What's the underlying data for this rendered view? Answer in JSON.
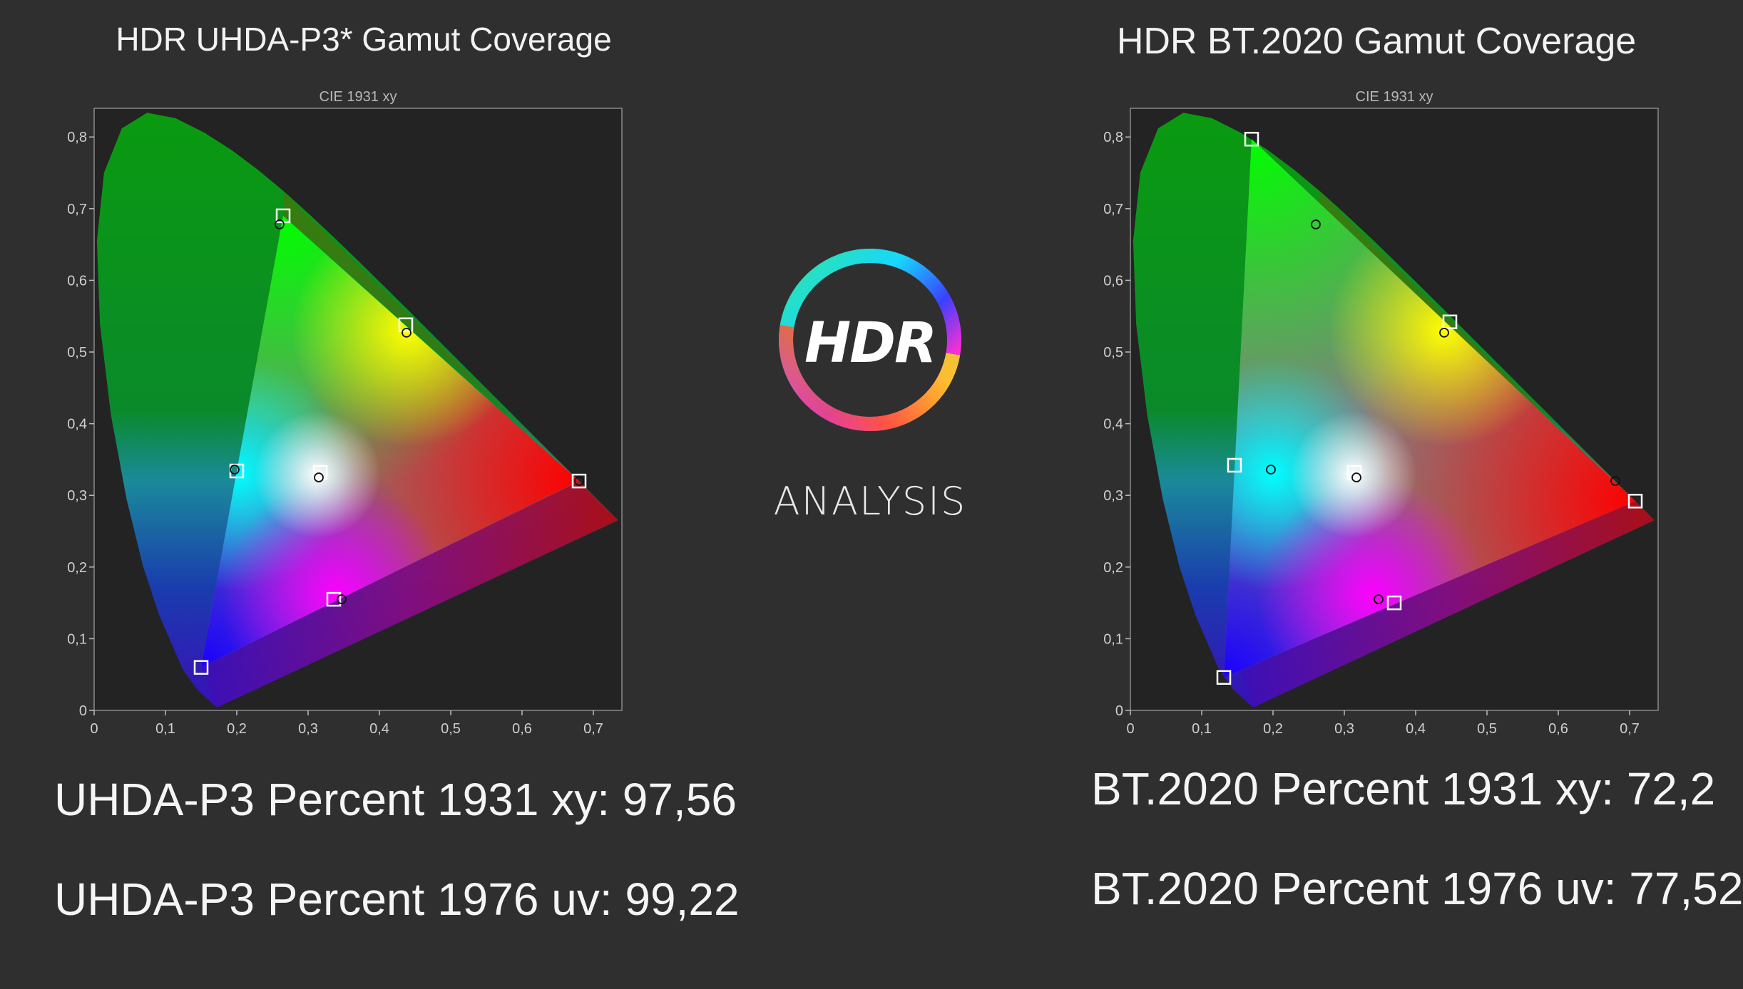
{
  "left_panel": {
    "title": "HDR UHDA-P3* Gamut Coverage",
    "stat1": "UHDA-P3 Percent 1931 xy: 97,56",
    "stat2": "UHDA-P3 Percent 1976 uv: 99,22"
  },
  "right_panel": {
    "title": "HDR BT.2020  Gamut Coverage",
    "stat1": "BT.2020 Percent 1931 xy: 72,2",
    "stat2": "BT.2020 Percent 1976 uv: 77,52"
  },
  "logo": {
    "main": "HDR",
    "sub": "ANALYSIS"
  },
  "colors": {
    "background": "#2f2f2f",
    "plot_bg": "#232323",
    "spectral_locus": "#0a8a1a"
  },
  "chart_data": [
    {
      "type": "scatter",
      "title": "CIE 1931 xy",
      "xlim": [
        0,
        0.74
      ],
      "ylim": [
        0,
        0.84
      ],
      "x_ticks": [
        "0",
        "0,1",
        "0,2",
        "0,3",
        "0,4",
        "0,5",
        "0,6",
        "0,7"
      ],
      "y_ticks": [
        "0",
        "0,1",
        "0,2",
        "0,3",
        "0,4",
        "0,5",
        "0,6",
        "0,7",
        "0,8"
      ],
      "grid": false,
      "target_gamut": [
        [
          0.68,
          0.32
        ],
        [
          0.265,
          0.69
        ],
        [
          0.15,
          0.06
        ]
      ],
      "series": [
        {
          "marker": "square",
          "points": [
            [
              0.265,
              0.69
            ],
            [
              0.68,
              0.32
            ],
            [
              0.15,
              0.06
            ],
            [
              0.437,
              0.538
            ],
            [
              0.2,
              0.334
            ],
            [
              0.317,
              0.332
            ],
            [
              0.336,
              0.155
            ]
          ]
        },
        {
          "marker": "circle",
          "points": [
            [
              0.26,
              0.678
            ],
            [
              0.68,
              0.32
            ],
            [
              0.438,
              0.527
            ],
            [
              0.197,
              0.336
            ],
            [
              0.315,
              0.325
            ],
            [
              0.347,
              0.155
            ]
          ]
        }
      ]
    },
    {
      "type": "scatter",
      "title": "CIE 1931 xy",
      "xlim": [
        0,
        0.74
      ],
      "ylim": [
        0,
        0.84
      ],
      "x_ticks": [
        "0",
        "0,1",
        "0,2",
        "0,3",
        "0,4",
        "0,5",
        "0,6",
        "0,7"
      ],
      "y_ticks": [
        "0",
        "0,1",
        "0,2",
        "0,3",
        "0,4",
        "0,5",
        "0,6",
        "0,7",
        "0,8"
      ],
      "grid": false,
      "target_gamut": [
        [
          0.708,
          0.292
        ],
        [
          0.17,
          0.797
        ],
        [
          0.131,
          0.046
        ]
      ],
      "series": [
        {
          "marker": "square",
          "points": [
            [
              0.17,
              0.797
            ],
            [
              0.708,
              0.292
            ],
            [
              0.131,
              0.046
            ],
            [
              0.448,
              0.542
            ],
            [
              0.146,
              0.342
            ],
            [
              0.314,
              0.332
            ],
            [
              0.37,
              0.15
            ]
          ]
        },
        {
          "marker": "circle",
          "points": [
            [
              0.26,
              0.678
            ],
            [
              0.68,
              0.32
            ],
            [
              0.44,
              0.527
            ],
            [
              0.197,
              0.336
            ],
            [
              0.317,
              0.325
            ],
            [
              0.348,
              0.155
            ]
          ]
        }
      ]
    }
  ]
}
